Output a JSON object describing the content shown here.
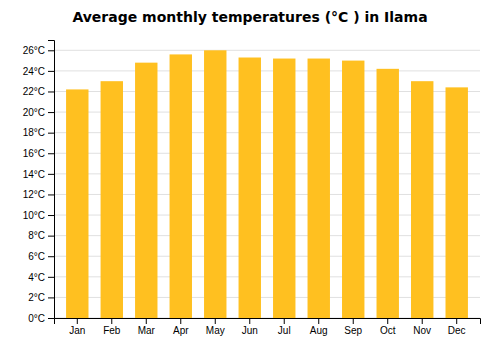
{
  "chart_data": {
    "type": "bar",
    "title": "Average monthly temperatures (°C ) in Ilama",
    "categories": [
      "Jan",
      "Feb",
      "Mar",
      "Apr",
      "May",
      "Jun",
      "Jul",
      "Aug",
      "Sep",
      "Oct",
      "Nov",
      "Dec"
    ],
    "values": [
      22.2,
      23.0,
      24.8,
      25.6,
      26.0,
      25.3,
      25.2,
      25.2,
      25.0,
      24.2,
      23.0,
      22.4
    ],
    "color": "#FFC020",
    "ylim": [
      0,
      27
    ],
    "yticks": [
      {
        "value": 0,
        "label": "0°C"
      },
      {
        "value": 2,
        "label": "2°C"
      },
      {
        "value": 4,
        "label": "4°C"
      },
      {
        "value": 6,
        "label": "6°C"
      },
      {
        "value": 8,
        "label": "8°C"
      },
      {
        "value": 10,
        "label": "10°C"
      },
      {
        "value": 12,
        "label": "12°C"
      },
      {
        "value": 14,
        "label": "14°C"
      },
      {
        "value": 16,
        "label": "16°C"
      },
      {
        "value": 18,
        "label": "18°C"
      },
      {
        "value": 20,
        "label": "20°C"
      },
      {
        "value": 22,
        "label": "22°C"
      },
      {
        "value": 24,
        "label": "24°C"
      },
      {
        "value": 26,
        "label": "26°C"
      }
    ],
    "grid": true
  }
}
